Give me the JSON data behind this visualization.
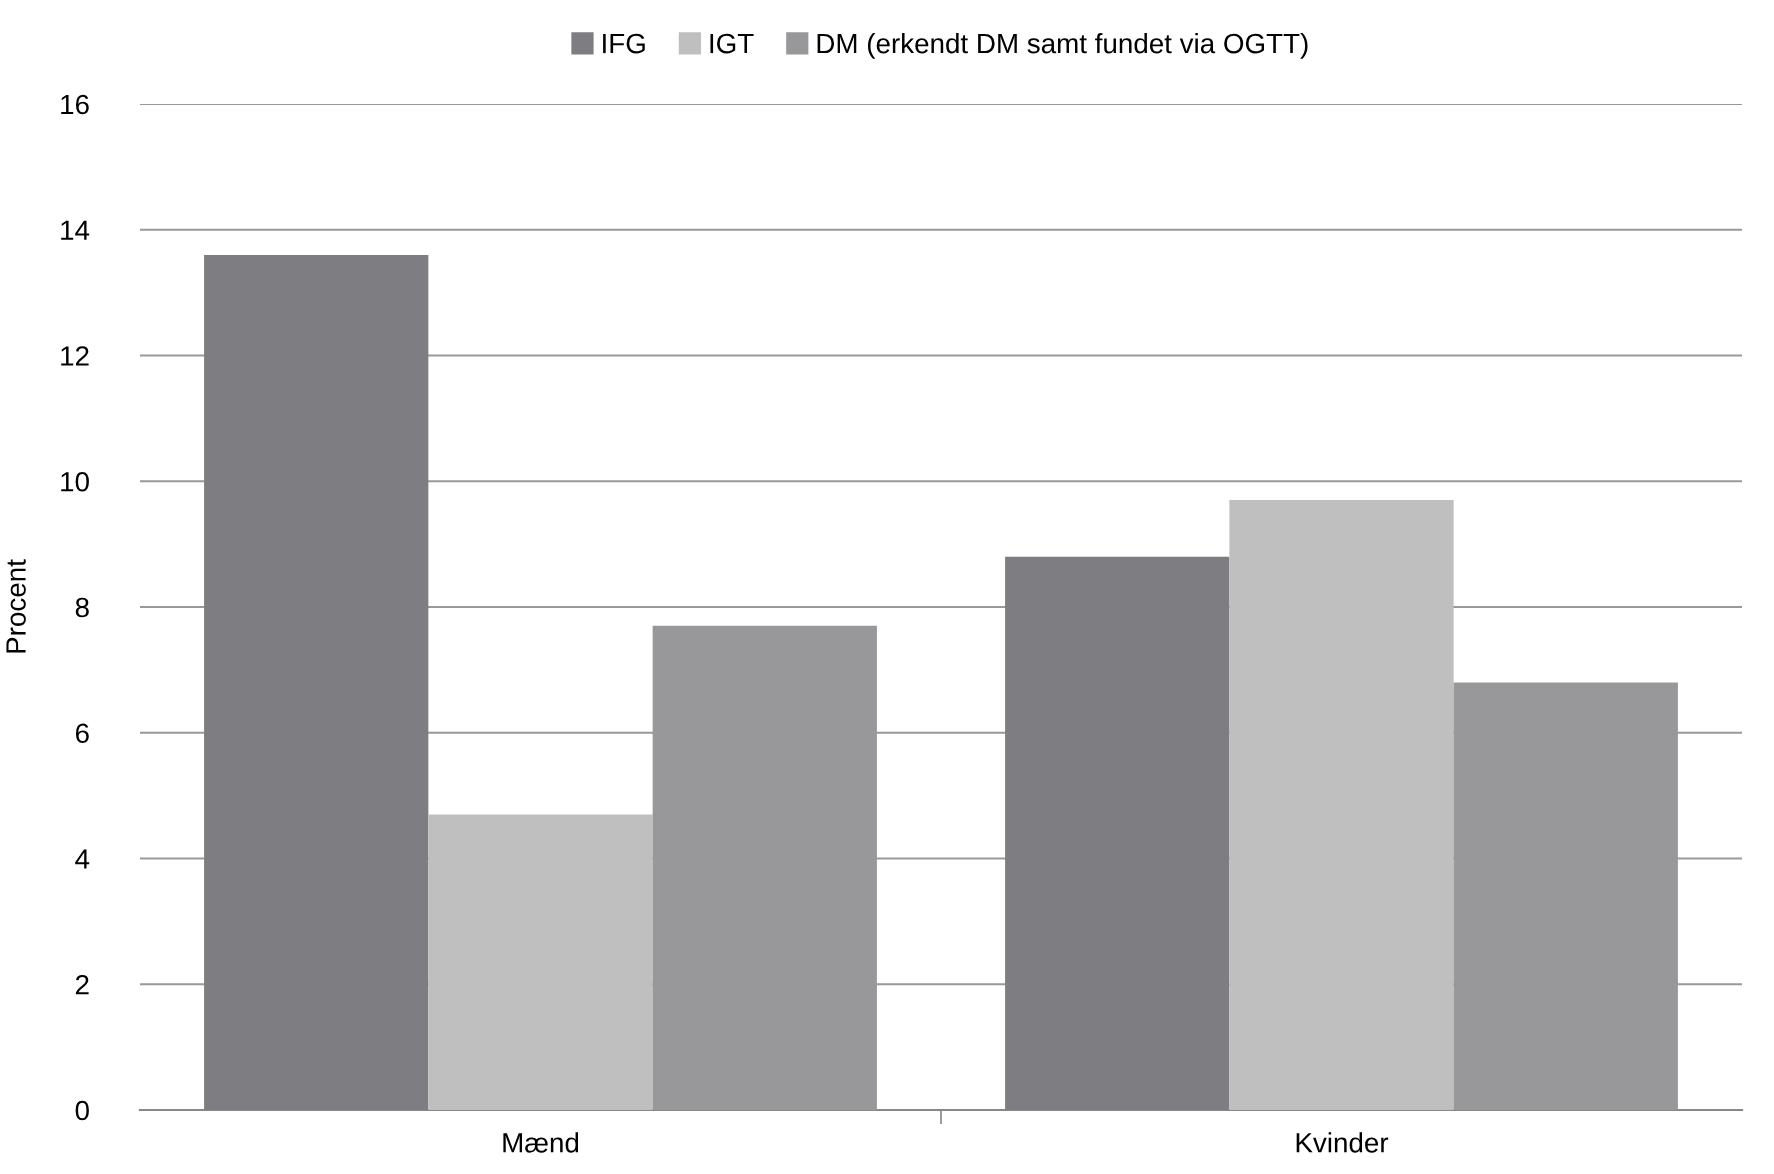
{
  "chart_data": {
    "type": "bar",
    "ylabel": "Procent",
    "categories": [
      "Mænd",
      "Kvinder"
    ],
    "series": [
      {
        "name": "IFG",
        "color": "#7e7e82",
        "values": [
          13.6,
          8.8
        ]
      },
      {
        "name": "IGT",
        "color": "#bfbfbf",
        "values": [
          4.7,
          9.7
        ]
      },
      {
        "name": "DM (erkendt DM samt fundet via OGTT)",
        "color": "#98989b",
        "values": [
          7.7,
          6.8
        ]
      }
    ],
    "ylim": [
      0,
      16
    ],
    "yticks": [
      0,
      2,
      4,
      6,
      8,
      10,
      12,
      14,
      16
    ],
    "grid": "y",
    "legend": "top"
  }
}
